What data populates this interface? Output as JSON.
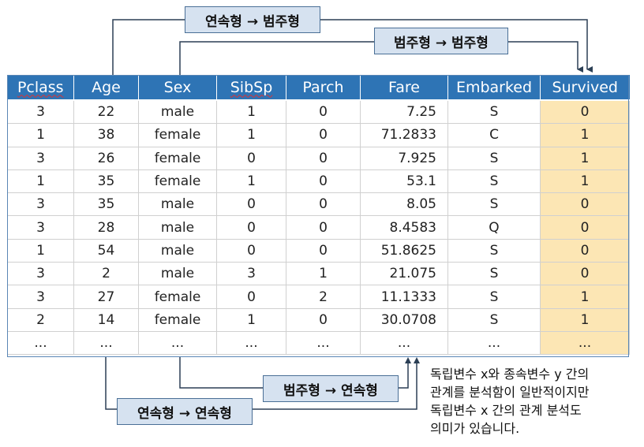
{
  "callouts": {
    "top1": "연속형 → 범주형",
    "top2": "범주형 → 범주형",
    "bottom1": "범주형 → 연속형",
    "bottom2": "연속형 → 연속형"
  },
  "table": {
    "columns": [
      "Pclass",
      "Age",
      "Sex",
      "SibSp",
      "Parch",
      "Fare",
      "Embarked",
      "Survived"
    ],
    "rows": [
      [
        "3",
        "22",
        "male",
        "1",
        "0",
        "7.25",
        "S",
        "0"
      ],
      [
        "1",
        "38",
        "female",
        "1",
        "0",
        "71.2833",
        "C",
        "1"
      ],
      [
        "3",
        "26",
        "female",
        "0",
        "0",
        "7.925",
        "S",
        "1"
      ],
      [
        "1",
        "35",
        "female",
        "1",
        "0",
        "53.1",
        "S",
        "1"
      ],
      [
        "3",
        "35",
        "male",
        "0",
        "0",
        "8.05",
        "S",
        "0"
      ],
      [
        "3",
        "28",
        "male",
        "0",
        "0",
        "8.4583",
        "Q",
        "0"
      ],
      [
        "1",
        "54",
        "male",
        "0",
        "0",
        "51.8625",
        "S",
        "0"
      ],
      [
        "3",
        "2",
        "male",
        "3",
        "1",
        "21.075",
        "S",
        "0"
      ],
      [
        "3",
        "27",
        "female",
        "0",
        "2",
        "11.1333",
        "S",
        "1"
      ],
      [
        "2",
        "14",
        "female",
        "1",
        "0",
        "30.0708",
        "S",
        "1"
      ],
      [
        "...",
        "...",
        "...",
        "...",
        "...",
        "...",
        "...",
        "..."
      ]
    ]
  },
  "note": {
    "lines": [
      "독립변수 x와 종속변수 y 간의",
      "관계를 분석함이 일반적이지만",
      "독립변수 x 간의 관계 분석도",
      "의미가 있습니다."
    ]
  },
  "colors": {
    "header_bg": "#2e74b5",
    "target_col_bg": "#fce6b4",
    "callout_bg": "#d6e2f0"
  }
}
